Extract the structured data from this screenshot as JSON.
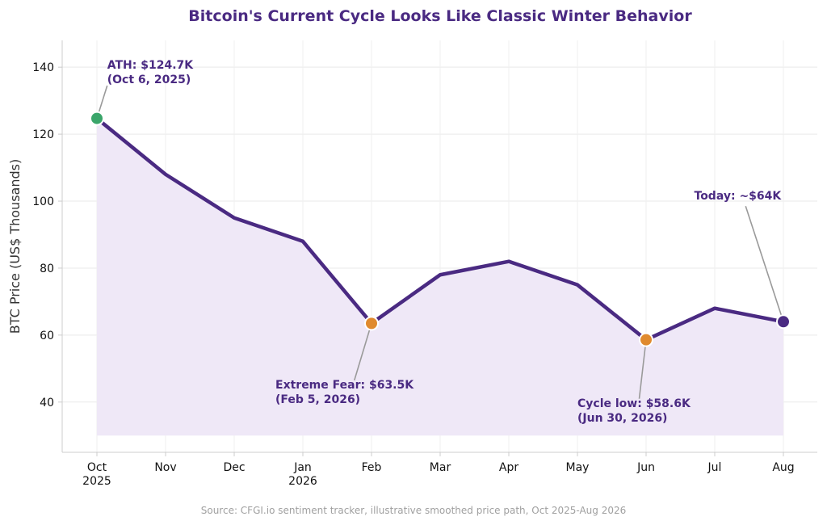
{
  "chart_data": {
    "type": "line",
    "title": "Bitcoin's Current Cycle Looks Like Classic Winter Behavior",
    "ylabel": "BTC Price (US$ Thousands)",
    "xlabel": "",
    "ylim": [
      25,
      148
    ],
    "yticks": [
      40,
      60,
      80,
      100,
      120,
      140
    ],
    "categories": [
      [
        "Oct",
        "2025"
      ],
      [
        "Nov"
      ],
      [
        "Dec"
      ],
      [
        "Jan",
        "2026"
      ],
      [
        "Feb"
      ],
      [
        "Mar"
      ],
      [
        "Apr"
      ],
      [
        "May"
      ],
      [
        "Jun"
      ],
      [
        "Jul"
      ],
      [
        "Aug"
      ]
    ],
    "series": [
      {
        "values": [
          124.7,
          108,
          95,
          88,
          63.5,
          78,
          82,
          75,
          58.6,
          68,
          64
        ],
        "color": "#4a2a82",
        "fill_color": "#efe8f7",
        "fill_floor": 30
      }
    ],
    "grid": true,
    "markers": [
      {
        "index": 0,
        "value": 124.7,
        "color": "#3aa56a"
      },
      {
        "index": 4,
        "value": 63.5,
        "color": "#e08a2e"
      },
      {
        "index": 8,
        "value": 58.6,
        "color": "#e08a2e"
      },
      {
        "index": 10,
        "value": 64,
        "color": "#4a2a82"
      }
    ],
    "annotations": [
      {
        "lines": [
          "ATH: $124.7K",
          "(Oct 6, 2025)"
        ],
        "point_index": 0,
        "point_value": 124.7,
        "text_index": 0.15,
        "text_value": 139.5,
        "anchor": "start",
        "arrow_to_index": 0.15,
        "arrow_to_value": 134.5
      },
      {
        "lines": [
          "Extreme Fear: $63.5K",
          "(Feb 5, 2026)"
        ],
        "point_index": 4,
        "point_value": 63.5,
        "text_index": 2.6,
        "text_value": 44,
        "anchor": "start",
        "arrow_to_index": 3.75,
        "arrow_to_value": 46.5
      },
      {
        "lines": [
          "Cycle low: $58.6K",
          "(Jun 30, 2026)"
        ],
        "point_index": 8,
        "point_value": 58.6,
        "text_index": 7.0,
        "text_value": 38.5,
        "anchor": "start",
        "arrow_to_index": 7.9,
        "arrow_to_value": 41
      },
      {
        "lines": [
          "Today: ~$64K"
        ],
        "point_index": 10,
        "point_value": 64,
        "text_index": 8.7,
        "text_value": 100.5,
        "anchor": "start",
        "arrow_to_index": 9.45,
        "arrow_to_value": 98.5
      }
    ],
    "source": "Source: CFGI.io sentiment tracker, illustrative smoothed price path, Oct 2025-Aug 2026"
  }
}
